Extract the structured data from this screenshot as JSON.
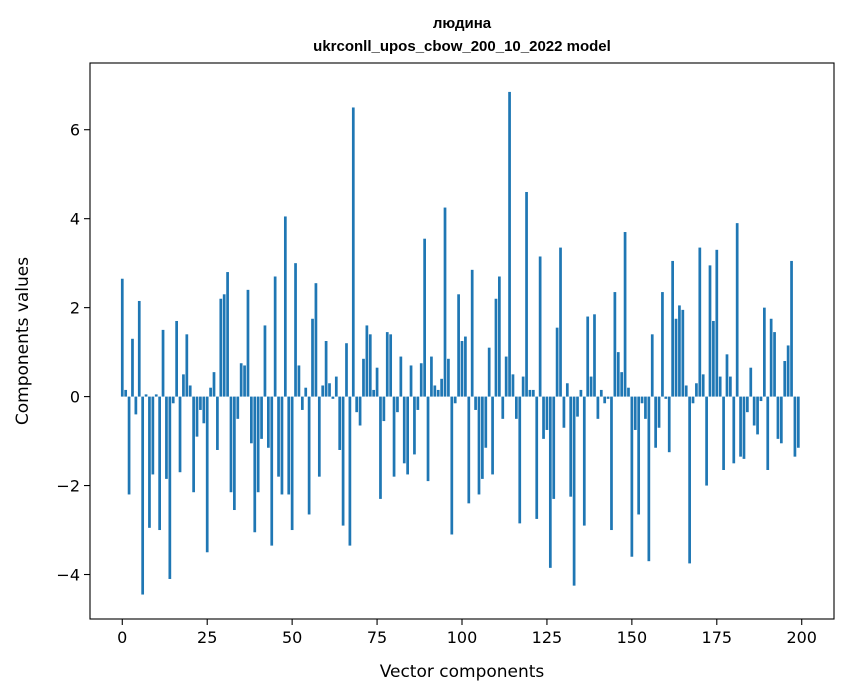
{
  "chart_data": {
    "type": "bar",
    "title": "людина",
    "subtitle": "ukrconll_upos_cbow_200_10_2022 model",
    "xlabel": "Vector components",
    "ylabel": "Components values",
    "xlim": [
      -9.5,
      209.5
    ],
    "ylim": [
      -5.0,
      7.5
    ],
    "xticks": [
      0,
      25,
      50,
      75,
      100,
      125,
      150,
      175,
      200
    ],
    "yticks": [
      -4,
      -2,
      0,
      2,
      4,
      6
    ],
    "ytick_labels": [
      "−4",
      "−2",
      "0",
      "2",
      "4",
      "6"
    ],
    "grid": false,
    "color": "#1f77b4",
    "values": [
      2.65,
      0.15,
      -2.2,
      1.3,
      -0.4,
      2.15,
      -4.45,
      0.05,
      -2.95,
      -1.75,
      0.05,
      -3.0,
      1.5,
      -1.85,
      -4.1,
      -0.15,
      1.7,
      -1.7,
      0.5,
      1.4,
      0.25,
      -2.15,
      -0.9,
      -0.3,
      -0.6,
      -3.5,
      0.2,
      0.55,
      -1.2,
      2.2,
      2.3,
      2.8,
      -2.15,
      -2.55,
      -0.5,
      0.75,
      0.7,
      2.4,
      -1.05,
      -3.05,
      -2.15,
      -0.95,
      1.6,
      -1.15,
      -3.35,
      2.7,
      -1.8,
      -2.2,
      4.05,
      -2.2,
      -3.0,
      3.0,
      0.7,
      -0.3,
      0.2,
      -2.65,
      1.75,
      2.55,
      -1.8,
      0.25,
      1.25,
      0.3,
      -0.05,
      0.45,
      -1.2,
      -2.9,
      1.2,
      -3.35,
      6.5,
      -0.35,
      -0.65,
      0.85,
      1.6,
      1.4,
      0.15,
      0.65,
      -2.3,
      -0.55,
      1.45,
      1.4,
      -1.8,
      -0.35,
      0.9,
      -1.5,
      -1.75,
      0.7,
      -1.3,
      -0.3,
      0.75,
      3.55,
      -1.9,
      0.9,
      0.25,
      0.15,
      0.4,
      4.25,
      0.85,
      -3.1,
      -0.15,
      2.3,
      1.25,
      1.35,
      -2.4,
      2.85,
      -0.3,
      -2.2,
      -1.85,
      -1.15,
      1.1,
      -1.75,
      2.2,
      2.7,
      -0.5,
      0.9,
      6.85,
      0.5,
      -0.5,
      -2.85,
      0.45,
      4.6,
      0.15,
      0.15,
      -2.75,
      3.15,
      -0.95,
      -0.75,
      -3.85,
      -2.3,
      1.55,
      3.35,
      -0.7,
      0.3,
      -2.25,
      -4.25,
      -0.45,
      0.15,
      -2.9,
      1.8,
      0.45,
      1.85,
      -0.5,
      0.15,
      -0.15,
      -0.05,
      -3.0,
      2.35,
      1.0,
      0.55,
      3.7,
      0.2,
      -3.6,
      -0.75,
      -2.65,
      -0.15,
      -0.5,
      -3.7,
      1.4,
      -1.15,
      -0.7,
      2.35,
      -0.05,
      -1.25,
      3.05,
      1.75,
      2.05,
      1.95,
      0.25,
      -3.75,
      -0.15,
      0.3,
      3.35,
      0.5,
      -2.0,
      2.95,
      1.7,
      3.3,
      0.45,
      -1.65,
      0.95,
      0.45,
      -1.5,
      3.9,
      -1.35,
      -1.4,
      -0.35,
      0.65,
      -0.65,
      -0.85,
      -0.1,
      2.0,
      -1.65,
      1.75,
      1.45,
      -0.95,
      -1.05,
      0.8,
      1.15,
      3.05,
      -1.35,
      -1.15
    ]
  }
}
